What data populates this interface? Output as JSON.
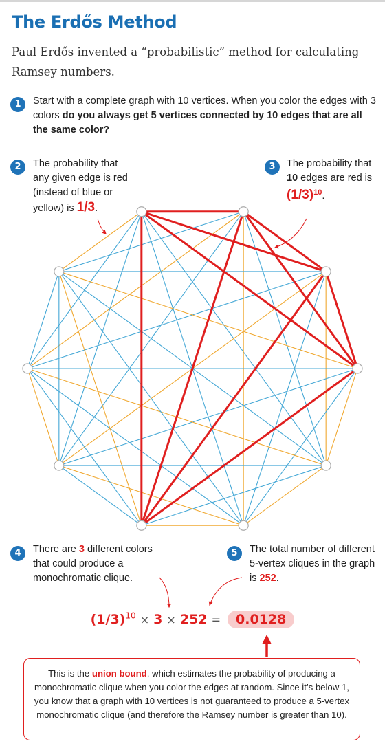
{
  "title": "The Erdős Method",
  "intro": "Paul Erdős invented a “probabilistic” method for calculating Ramsey numbers.",
  "colors": {
    "blue": "#45a8d6",
    "orange": "#f0a830",
    "red": "#e01f1f",
    "accent": "#1a6fb3"
  },
  "steps": [
    {
      "n": "1",
      "a": "Start with a complete graph with 10 vertices. When you color the edges with 3 colors ",
      "b": "do you always get 5 vertices connected by 10 edges that are all the same color?"
    },
    {
      "n": "2",
      "a": "The probability that any given edge is red (instead of blue or yellow) is ",
      "v": "1/3",
      "c": "."
    },
    {
      "n": "3",
      "a": "The probability that ",
      "b": "10",
      "c": " edges are red is",
      "base": "(1/3)",
      "exp": "10",
      "d": "."
    },
    {
      "n": "4",
      "a": "There are ",
      "b": "3",
      "c": " different colors that could produce a monochromatic clique."
    },
    {
      "n": "5",
      "a": "The total number of different 5-vertex cliques in the graph is ",
      "b": "252",
      "c": "."
    }
  ],
  "formula": {
    "base": "(1/3)",
    "exp": "10",
    "times": "×",
    "three": "3",
    "cliques": "252",
    "equals": "=",
    "result": "0.0128"
  },
  "box": {
    "a": "This is the ",
    "b": "union bound",
    "c": ", which estimates the probability of producing a monochromatic clique when you color the edges at random. Since it’s below 1, you know that a graph with 10 vertices is not guaranteed to produce a 5-vertex monochromatic clique (and therefore the Ramsey number is greater than 10)."
  },
  "graph": {
    "vertex_count": 10,
    "red_edges": [
      [
        0,
        1
      ],
      [
        0,
        2
      ],
      [
        0,
        6
      ],
      [
        1,
        2
      ],
      [
        1,
        6
      ],
      [
        2,
        6
      ],
      [
        0,
        3
      ],
      [
        1,
        3
      ],
      [
        2,
        3
      ],
      [
        3,
        6
      ]
    ]
  }
}
